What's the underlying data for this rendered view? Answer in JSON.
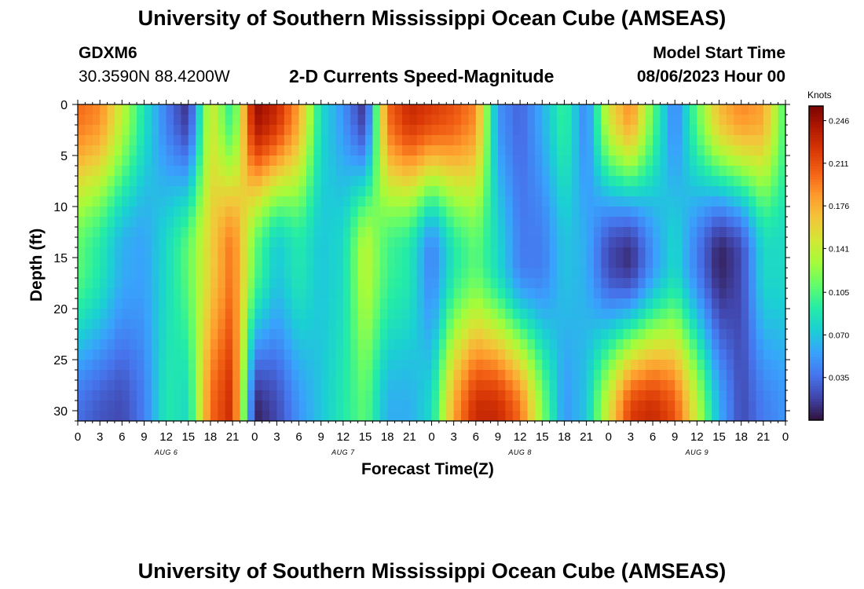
{
  "header": {
    "title": "University of Southern Mississippi Ocean Cube (AMSEAS)",
    "station_id": "GDXM6",
    "station_coords": "30.3590N  88.4200W",
    "plot_title": "2-D Currents Speed-Magnitude",
    "model_start_label": "Model Start Time",
    "model_start_value": "08/06/2023 Hour 00"
  },
  "footer": {
    "title": "University of Southern Mississippi Ocean Cube (AMSEAS)"
  },
  "chart_data": {
    "type": "heatmap",
    "title": "2-D Currents Speed-Magnitude",
    "xlabel": "Forecast Time(Z)",
    "ylabel": "Depth (ft)",
    "x_tick_labels": [
      "0",
      "3",
      "6",
      "9",
      "12",
      "15",
      "18",
      "21",
      "0",
      "3",
      "6",
      "9",
      "12",
      "15",
      "18",
      "21",
      "0",
      "3",
      "6",
      "9",
      "12",
      "15",
      "18",
      "21",
      "0",
      "3",
      "6",
      "9",
      "12",
      "15",
      "18",
      "21",
      "0"
    ],
    "x_hours": [
      0,
      3,
      6,
      9,
      12,
      15,
      18,
      21,
      24,
      27,
      30,
      33,
      36,
      39,
      42,
      45,
      48,
      51,
      54,
      57,
      60,
      63,
      66,
      69,
      72,
      75,
      78,
      81,
      84,
      87,
      90,
      93,
      96
    ],
    "xlim": [
      0,
      96
    ],
    "day_labels": [
      {
        "label": "AUG 6",
        "hour": 12
      },
      {
        "label": "AUG 7",
        "hour": 36
      },
      {
        "label": "AUG 8",
        "hour": 60
      },
      {
        "label": "AUG 9",
        "hour": 84
      }
    ],
    "y_tick_labels": [
      "0",
      "5",
      "10",
      "15",
      "20",
      "25",
      "30"
    ],
    "y_ticks": [
      0,
      5,
      10,
      15,
      20,
      25,
      30
    ],
    "ylim": [
      0,
      31
    ],
    "y_inverted": true,
    "colorbar": {
      "title": "Knots",
      "ticks": [
        "0.246",
        "0.211",
        "0.176",
        "0.141",
        "0.105",
        "0.070",
        "0.035"
      ],
      "tick_values": [
        0.246,
        0.211,
        0.176,
        0.141,
        0.105,
        0.07,
        0.035
      ],
      "range": [
        0,
        0.258
      ],
      "colormap": [
        "#30123b",
        "#4145ab",
        "#4675ed",
        "#39a2fc",
        "#1bcfd4",
        "#24eca6",
        "#61fc6c",
        "#a4fc3b",
        "#d1e834",
        "#f3c63a",
        "#fe9b2d",
        "#f36315",
        "#d93806",
        "#b11901",
        "#7a0403"
      ]
    },
    "series": [
      {
        "hour": 0,
        "surface": 0.2,
        "mid": 0.11,
        "deep": 0.035
      },
      {
        "hour": 3,
        "surface": 0.19,
        "mid": 0.09,
        "deep": 0.025
      },
      {
        "hour": 6,
        "surface": 0.14,
        "mid": 0.06,
        "deep": 0.02
      },
      {
        "hour": 9,
        "surface": 0.085,
        "mid": 0.055,
        "deep": 0.04
      },
      {
        "hour": 12,
        "surface": 0.04,
        "mid": 0.08,
        "deep": 0.09
      },
      {
        "hour": 15,
        "surface": 0.01,
        "mid": 0.11,
        "deep": 0.08
      },
      {
        "hour": 18,
        "surface": 0.15,
        "mid": 0.16,
        "deep": 0.2
      },
      {
        "hour": 21,
        "surface": 0.09,
        "mid": 0.2,
        "deep": 0.23
      },
      {
        "hour": 24,
        "surface": 0.25,
        "mid": 0.11,
        "deep": 0.005
      },
      {
        "hour": 27,
        "surface": 0.23,
        "mid": 0.07,
        "deep": 0.02
      },
      {
        "hour": 30,
        "surface": 0.18,
        "mid": 0.09,
        "deep": 0.05
      },
      {
        "hour": 33,
        "surface": 0.08,
        "mid": 0.07,
        "deep": 0.07
      },
      {
        "hour": 36,
        "surface": 0.05,
        "mid": 0.08,
        "deep": 0.09
      },
      {
        "hour": 39,
        "surface": 0.01,
        "mid": 0.14,
        "deep": 0.11
      },
      {
        "hour": 42,
        "surface": 0.2,
        "mid": 0.1,
        "deep": 0.06
      },
      {
        "hour": 45,
        "surface": 0.23,
        "mid": 0.09,
        "deep": 0.06
      },
      {
        "hour": 48,
        "surface": 0.22,
        "mid": 0.04,
        "deep": 0.08
      },
      {
        "hour": 51,
        "surface": 0.21,
        "mid": 0.09,
        "deep": 0.18
      },
      {
        "hour": 54,
        "surface": 0.19,
        "mid": 0.11,
        "deep": 0.23
      },
      {
        "hour": 57,
        "surface": 0.05,
        "mid": 0.08,
        "deep": 0.23
      },
      {
        "hour": 60,
        "surface": 0.03,
        "mid": 0.04,
        "deep": 0.2
      },
      {
        "hour": 63,
        "surface": 0.06,
        "mid": 0.04,
        "deep": 0.12
      },
      {
        "hour": 66,
        "surface": 0.1,
        "mid": 0.07,
        "deep": 0.05
      },
      {
        "hour": 69,
        "surface": 0.04,
        "mid": 0.06,
        "deep": 0.07
      },
      {
        "hour": 72,
        "surface": 0.15,
        "mid": 0.02,
        "deep": 0.15
      },
      {
        "hour": 75,
        "surface": 0.19,
        "mid": 0.01,
        "deep": 0.22
      },
      {
        "hour": 78,
        "surface": 0.11,
        "mid": 0.05,
        "deep": 0.23
      },
      {
        "hour": 81,
        "surface": 0.04,
        "mid": 0.08,
        "deep": 0.21
      },
      {
        "hour": 84,
        "surface": 0.11,
        "mid": 0.04,
        "deep": 0.14
      },
      {
        "hour": 87,
        "surface": 0.17,
        "mid": 0.005,
        "deep": 0.06
      },
      {
        "hour": 90,
        "surface": 0.19,
        "mid": 0.02,
        "deep": 0.02
      },
      {
        "hour": 93,
        "surface": 0.18,
        "mid": 0.08,
        "deep": 0.04
      },
      {
        "hour": 96,
        "surface": 0.1,
        "mid": 0.08,
        "deep": 0.05
      }
    ]
  }
}
